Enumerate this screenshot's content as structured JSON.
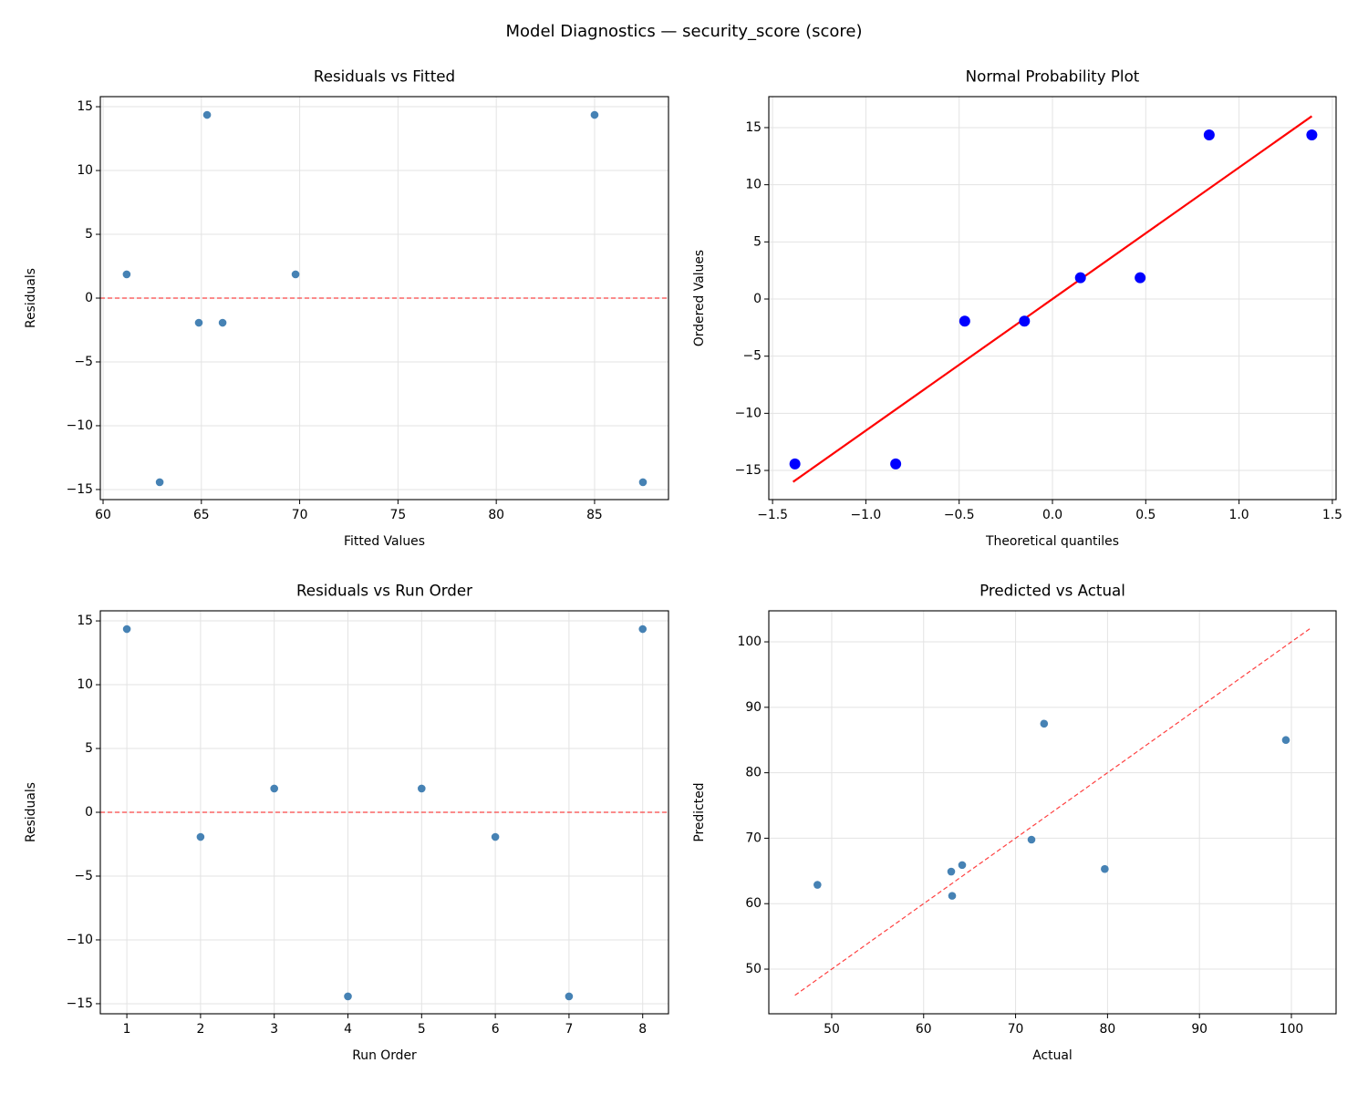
{
  "title": "Model Diagnostics — security_score (score)",
  "chart_data": [
    {
      "type": "scatter",
      "title": "Residuals vs Fitted",
      "x_label": "Fitted Values",
      "y_label": "Residuals",
      "xlim": [
        59.86,
        88.76
      ],
      "ylim": [
        -15.79,
        15.79
      ],
      "xticks": [
        60,
        65,
        70,
        75,
        80,
        85
      ],
      "yticks": [
        {
          "value": -15,
          "label": "−15"
        },
        {
          "value": -10,
          "label": "−10"
        },
        {
          "value": -5,
          "label": "−5"
        },
        0,
        5,
        10,
        15
      ],
      "grid": true,
      "series": [
        {
          "kind": "scatter",
          "color": "#4682b4",
          "x": [
            61.2,
            62.88,
            64.87,
            65.29,
            66.08,
            69.79,
            85.0,
            87.46
          ],
          "values": [
            1.86,
            -14.43,
            -1.93,
            14.36,
            -1.93,
            1.86,
            14.36,
            -14.43
          ]
        },
        {
          "kind": "hline",
          "color": "#ff0000",
          "dashed": true,
          "values": [
            0
          ]
        }
      ]
    },
    {
      "type": "scatter",
      "title": "Normal Probability Plot",
      "x_label": "Theoretical quantiles",
      "y_label": "Ordered Values",
      "xlim": [
        -1.52,
        1.52
      ],
      "ylim": [
        -17.55,
        17.71
      ],
      "xticks": [
        {
          "value": -1.5,
          "label": "−1.5"
        },
        {
          "value": -1.0,
          "label": "−1.0"
        },
        {
          "value": -0.5,
          "label": "−0.5"
        },
        {
          "value": 0,
          "label": "0.0"
        },
        0.5,
        {
          "value": 1.0,
          "label": "1.0"
        },
        1.5
      ],
      "yticks": [
        {
          "value": -15,
          "label": "−15"
        },
        {
          "value": -10,
          "label": "−10"
        },
        {
          "value": -5,
          "label": "−5"
        },
        0,
        5,
        10,
        15
      ],
      "grid": true,
      "series": [
        {
          "kind": "scatter",
          "color": "#0000ff",
          "size": 6,
          "x": [
            -1.38,
            -0.84,
            -0.47,
            -0.15,
            0.15,
            0.47,
            0.84,
            1.39
          ],
          "values": [
            -14.43,
            -14.43,
            -1.93,
            -1.93,
            1.86,
            1.86,
            14.36,
            14.36
          ]
        },
        {
          "kind": "line",
          "color": "#ff0000",
          "x": [
            -1.39,
            1.39
          ],
          "values": [
            -16.0,
            16.0
          ]
        }
      ]
    },
    {
      "type": "scatter",
      "title": "Residuals vs Run Order",
      "x_label": "Run Order",
      "y_label": "Residuals",
      "xlim": [
        0.64,
        8.35
      ],
      "ylim": [
        -15.79,
        15.79
      ],
      "xticks": [
        1,
        2,
        3,
        4,
        5,
        6,
        7,
        8
      ],
      "yticks": [
        {
          "value": -15,
          "label": "−15"
        },
        {
          "value": -10,
          "label": "−10"
        },
        {
          "value": -5,
          "label": "−5"
        },
        0,
        5,
        10,
        15
      ],
      "grid": true,
      "series": [
        {
          "kind": "scatter",
          "color": "#4682b4",
          "x": [
            1,
            2,
            3,
            4,
            5,
            6,
            7,
            8
          ],
          "values": [
            14.36,
            -1.93,
            1.86,
            -14.43,
            1.86,
            -1.93,
            -14.43,
            14.36
          ]
        },
        {
          "kind": "hline",
          "color": "#ff0000",
          "dashed": true,
          "values": [
            0
          ]
        }
      ]
    },
    {
      "type": "scatter",
      "title": "Predicted vs Actual",
      "x_label": "Actual",
      "y_label": "Predicted",
      "xlim": [
        43.16,
        104.86
      ],
      "ylim": [
        43.18,
        104.74
      ],
      "xticks": [
        50,
        60,
        70,
        80,
        90,
        100
      ],
      "yticks": [
        50,
        60,
        70,
        80,
        90,
        100
      ],
      "grid": true,
      "series": [
        {
          "kind": "scatter",
          "color": "#4682b4",
          "x": [
            48.45,
            63.0,
            63.1,
            64.19,
            71.73,
            73.1,
            79.7,
            99.4
          ],
          "values": [
            62.88,
            64.9,
            61.2,
            65.9,
            69.78,
            87.5,
            65.3,
            85.0
          ]
        },
        {
          "kind": "line",
          "color": "#ff0000",
          "dashed": true,
          "x": [
            46,
            102
          ],
          "values": [
            46,
            102
          ]
        }
      ]
    }
  ]
}
